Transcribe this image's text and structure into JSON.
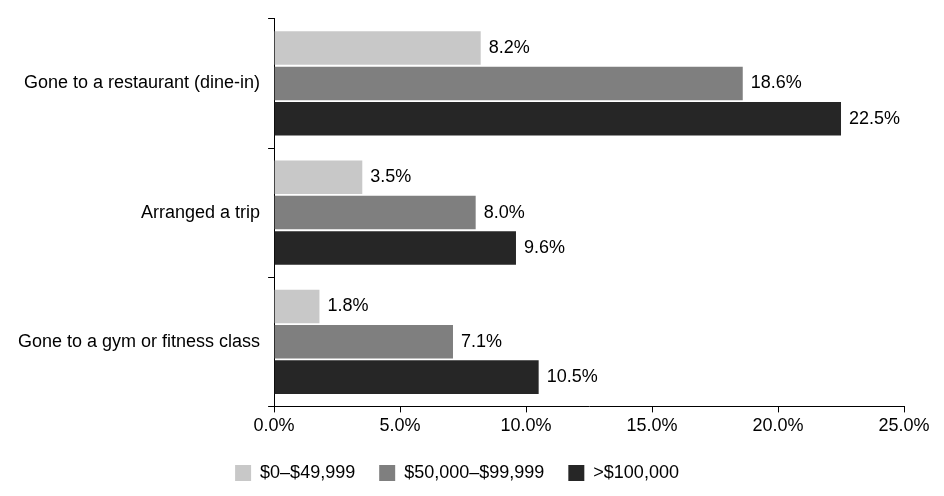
{
  "chart_data": {
    "type": "bar",
    "orientation": "horizontal",
    "categories": [
      "Gone to a restaurant (dine-in)",
      "Arranged a trip",
      "Gone to a gym or fitness class"
    ],
    "series": [
      {
        "name": "$0–$49,999",
        "color": "#c8c8c8",
        "values": [
          8.2,
          3.5,
          1.8
        ],
        "value_labels": [
          "8.2%",
          "3.5%",
          "1.8%"
        ]
      },
      {
        "name": "$50,000–$99,999",
        "color": "#7f7f7f",
        "values": [
          18.6,
          8.0,
          7.1
        ],
        "value_labels": [
          "18.6%",
          "8.0%",
          "7.1%"
        ]
      },
      {
        "name": ">$100,000",
        "color": "#262626",
        "values": [
          22.5,
          9.6,
          10.5
        ],
        "value_labels": [
          "22.5%",
          "9.6%",
          "10.5%"
        ]
      }
    ],
    "xlim": [
      0,
      25
    ],
    "xticks": [
      {
        "value": 0,
        "label": "0.0%"
      },
      {
        "value": 5,
        "label": "5.0%"
      },
      {
        "value": 10,
        "label": "10.0%"
      },
      {
        "value": 15,
        "label": "15.0%"
      },
      {
        "value": 20,
        "label": "20.0%"
      },
      {
        "value": 25,
        "label": "25.0%"
      }
    ],
    "grid": false,
    "data_labels": true,
    "legend": "bottom"
  }
}
